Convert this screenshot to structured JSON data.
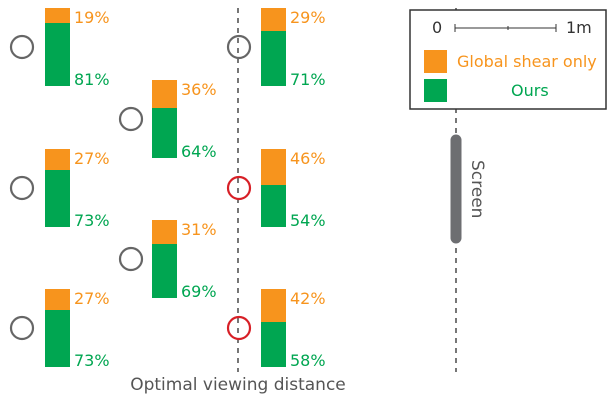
{
  "colors": {
    "orange": "#f7941d",
    "green": "#00a651",
    "seat_default": "#666666",
    "seat_highlight": "#d71f26",
    "line": "#555555",
    "screen": "#6d6e71"
  },
  "legend": {
    "scale_start": "0",
    "scale_end": "1m",
    "global_label": "Global shear only",
    "ours_label": "Ours"
  },
  "screen_label": "Screen",
  "optimal_label": "Optimal viewing distance",
  "viewers": [
    {
      "id": "r1c1",
      "top": "19%",
      "bottom": "81%",
      "top_fraction": 0.19,
      "highlight": false
    },
    {
      "id": "r1c3",
      "top": "29%",
      "bottom": "71%",
      "top_fraction": 0.29,
      "highlight": false
    },
    {
      "id": "r2c2",
      "top": "36%",
      "bottom": "64%",
      "top_fraction": 0.36,
      "highlight": false
    },
    {
      "id": "r3c1",
      "top": "27%",
      "bottom": "73%",
      "top_fraction": 0.27,
      "highlight": false
    },
    {
      "id": "r3c3",
      "top": "46%",
      "bottom": "54%",
      "top_fraction": 0.46,
      "highlight": true
    },
    {
      "id": "r4c2",
      "top": "31%",
      "bottom": "69%",
      "top_fraction": 0.31,
      "highlight": false
    },
    {
      "id": "r5c1",
      "top": "27%",
      "bottom": "73%",
      "top_fraction": 0.27,
      "highlight": false
    },
    {
      "id": "r5c3",
      "top": "42%",
      "bottom": "58%",
      "top_fraction": 0.42,
      "highlight": true
    }
  ]
}
